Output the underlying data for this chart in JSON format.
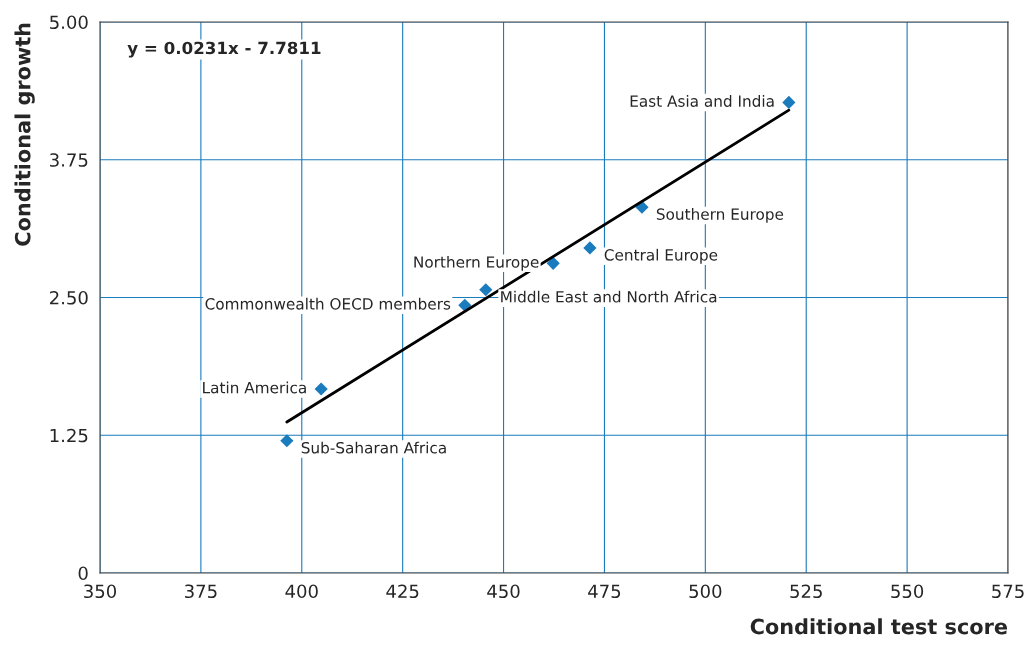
{
  "chart_data": {
    "type": "scatter",
    "xlabel": "Conditional test score",
    "ylabel": "Conditional growth",
    "xlim": [
      350,
      575
    ],
    "xticks": [
      350,
      375,
      400,
      425,
      450,
      475,
      500,
      525,
      550,
      575
    ],
    "ylim": [
      0,
      5
    ],
    "yticks": [
      0,
      {
        "value": 1.25,
        "label": "1.25"
      },
      {
        "value": 2.5,
        "label": "2.50"
      },
      {
        "value": 3.75,
        "label": "3.75"
      },
      {
        "value": 5,
        "label": "5.00"
      }
    ],
    "grid": true,
    "marker": "diamond",
    "series": [
      {
        "color": "#1a7bbd",
        "x": [
          520.7,
          484.3,
          471.4,
          462.3,
          445.6,
          440.4,
          404.8,
          396.3
        ],
        "values": [
          4.27,
          3.32,
          2.95,
          2.81,
          2.57,
          2.43,
          1.67,
          1.2
        ]
      },
      {
        "type": "line",
        "color": "#000000",
        "marker": "none",
        "x": [
          396.3,
          520.7
        ],
        "values": [
          1.37,
          4.2
        ]
      }
    ],
    "annotations": [
      "y = 0.0231x - 7.7811",
      {
        "text": "East Asia and India",
        "x": 520.7,
        "y": 4.27
      },
      {
        "text": "Southern Europe",
        "x": 484.3,
        "y": 3.32
      },
      {
        "text": "Central Europe",
        "x": 471.4,
        "y": 2.95
      },
      {
        "text": "Northern Europe",
        "x": 462.3,
        "y": 2.81
      },
      {
        "text": "Middle East and North Africa",
        "x": 445.6,
        "y": 2.57
      },
      {
        "text": "Commonwealth OECD members",
        "x": 440.4,
        "y": 2.43
      },
      {
        "text": "Latin America",
        "x": 404.8,
        "y": 1.67
      },
      {
        "text": "Sub-Saharan Africa",
        "x": 396.3,
        "y": 1.2
      }
    ]
  }
}
